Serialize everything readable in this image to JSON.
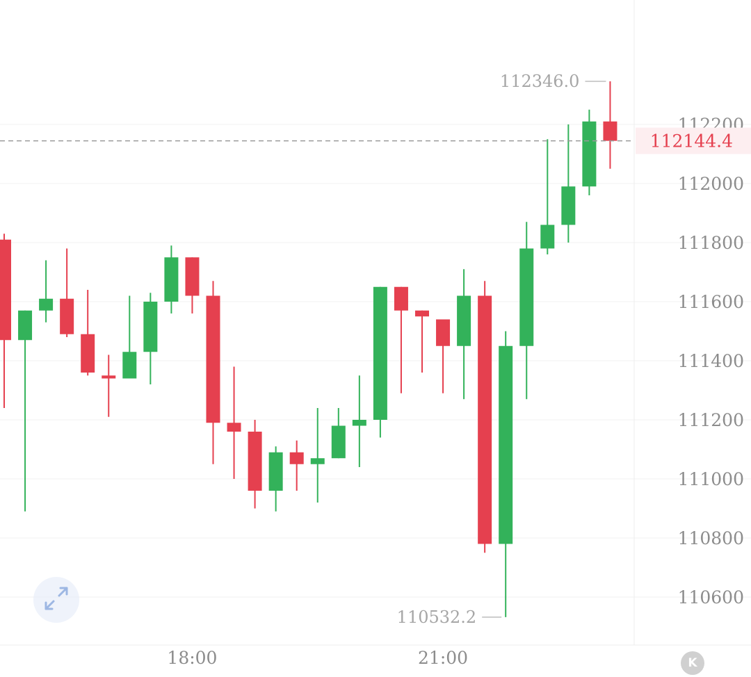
{
  "chart_data": {
    "type": "candlestick",
    "x_ticks": [
      {
        "label": "18:00",
        "index": 9
      },
      {
        "label": "21:00",
        "index": 21
      }
    ],
    "y_ticks": [
      110600,
      110800,
      111000,
      111200,
      111400,
      111600,
      111800,
      112000,
      112200
    ],
    "y_range": [
      110480,
      112480
    ],
    "grid": true,
    "colors": {
      "up": "#33b25a",
      "down": "#e5404f",
      "last_price": "#e5404f",
      "axis_text": "#8c8c8c",
      "grid": "#f0f0f0"
    },
    "last_price": {
      "value": 112144.4,
      "label": "112144.4"
    },
    "high_marker": {
      "value": 112346.0,
      "label": "112346.0",
      "index": 29
    },
    "low_marker": {
      "value": 110532.2,
      "label": "110532.2",
      "index": 24
    },
    "candles": [
      {
        "o": 111810,
        "h": 111830,
        "l": 111240,
        "c": 111470
      },
      {
        "o": 111470,
        "h": 111570,
        "l": 110890,
        "c": 111570
      },
      {
        "o": 111570,
        "h": 111740,
        "l": 111530,
        "c": 111610
      },
      {
        "o": 111610,
        "h": 111780,
        "l": 111480,
        "c": 111490
      },
      {
        "o": 111490,
        "h": 111640,
        "l": 111350,
        "c": 111360
      },
      {
        "o": 111350,
        "h": 111420,
        "l": 111210,
        "c": 111340
      },
      {
        "o": 111340,
        "h": 111620,
        "l": 111340,
        "c": 111430
      },
      {
        "o": 111430,
        "h": 111630,
        "l": 111320,
        "c": 111600
      },
      {
        "o": 111600,
        "h": 111790,
        "l": 111560,
        "c": 111750
      },
      {
        "o": 111750,
        "h": 111750,
        "l": 111560,
        "c": 111620
      },
      {
        "o": 111620,
        "h": 111670,
        "l": 111050,
        "c": 111190
      },
      {
        "o": 111190,
        "h": 111380,
        "l": 111000,
        "c": 111160
      },
      {
        "o": 111160,
        "h": 111200,
        "l": 110900,
        "c": 110960
      },
      {
        "o": 110960,
        "h": 111110,
        "l": 110890,
        "c": 111090
      },
      {
        "o": 111090,
        "h": 111130,
        "l": 110960,
        "c": 111050
      },
      {
        "o": 111050,
        "h": 111240,
        "l": 110920,
        "c": 111070
      },
      {
        "o": 111070,
        "h": 111240,
        "l": 111070,
        "c": 111180
      },
      {
        "o": 111180,
        "h": 111350,
        "l": 111040,
        "c": 111200
      },
      {
        "o": 111200,
        "h": 111650,
        "l": 111140,
        "c": 111650
      },
      {
        "o": 111650,
        "h": 111650,
        "l": 111290,
        "c": 111570
      },
      {
        "o": 111570,
        "h": 111570,
        "l": 111360,
        "c": 111550
      },
      {
        "o": 111540,
        "h": 111540,
        "l": 111290,
        "c": 111450
      },
      {
        "o": 111450,
        "h": 111710,
        "l": 111270,
        "c": 111620
      },
      {
        "o": 111620,
        "h": 111670,
        "l": 110750,
        "c": 110780
      },
      {
        "o": 110780,
        "h": 111500,
        "l": 110532.2,
        "c": 111450
      },
      {
        "o": 111450,
        "h": 111870,
        "l": 111270,
        "c": 111780
      },
      {
        "o": 111780,
        "h": 112150,
        "l": 111760,
        "c": 111860
      },
      {
        "o": 111860,
        "h": 112200,
        "l": 111800,
        "c": 111990
      },
      {
        "o": 111990,
        "h": 112250,
        "l": 111960,
        "c": 112210
      },
      {
        "o": 112210,
        "h": 112346.0,
        "l": 112050,
        "c": 112144.4
      }
    ]
  },
  "controls": {
    "expand_icon": "expand-arrows-icon",
    "k_button_label": "K"
  }
}
